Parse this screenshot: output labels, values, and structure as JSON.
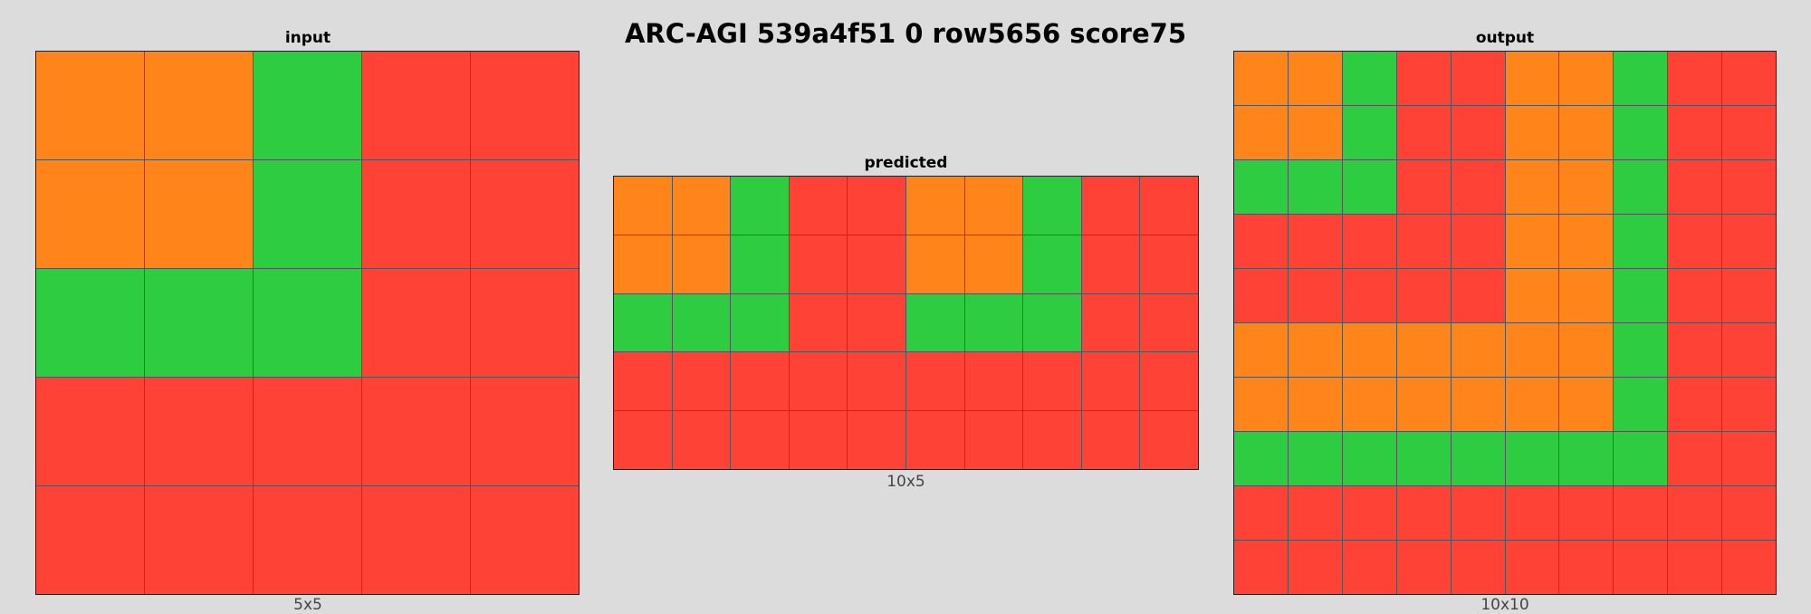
{
  "title": "ARC-AGI 539a4f51 0 row5656 score75",
  "palette": {
    "O": "#ff851b",
    "G": "#2ecc40",
    "R": "#ff4136"
  },
  "panels": {
    "input": {
      "label": "input",
      "dims": "5x5",
      "rows": [
        "OOGRR",
        "OOGRR",
        "GGGRR",
        "RRRRR",
        "RRRRR"
      ]
    },
    "predicted": {
      "label": "predicted",
      "dims": "10x5",
      "rows": [
        "OOGRROOGRR",
        "OOGRROOGRR",
        "GGGRRGGGRR",
        "RRRRRRRRRR",
        "RRRRRRRRRR"
      ]
    },
    "output": {
      "label": "output",
      "dims": "10x10",
      "rows": [
        "OOGRROOGRR",
        "OOGRROOGRR",
        "GGGRROOGRR",
        "RRRRROOGRR",
        "RRRRROOGRR",
        "OOOOOOOGRR",
        "OOOOOOOGRR",
        "GGGGGGGGRR",
        "RRRRRRRRRR",
        "RRRRRRRRRR"
      ]
    }
  }
}
